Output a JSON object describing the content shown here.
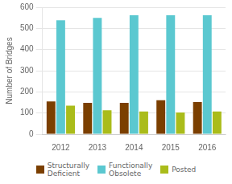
{
  "chart_data": {
    "type": "bar",
    "categories": [
      "2012",
      "2013",
      "2014",
      "2015",
      "2016"
    ],
    "series": [
      {
        "name": "Structurally\nDeficient",
        "color": "#7B3F00",
        "values": [
          155,
          148,
          148,
          160,
          152
        ]
      },
      {
        "name": "Functionally\nObsolete",
        "color": "#5BC8D0",
        "values": [
          538,
          550,
          562,
          562,
          562
        ]
      },
      {
        "name": "Posted",
        "color": "#AABC1A",
        "values": [
          135,
          113,
          107,
          103,
          107
        ]
      }
    ],
    "ylabel": "Number of Bridges",
    "ylim": [
      0,
      600
    ],
    "yticks": [
      0,
      100,
      200,
      300,
      400,
      500,
      600
    ],
    "grid": true,
    "legend": "bottom"
  }
}
